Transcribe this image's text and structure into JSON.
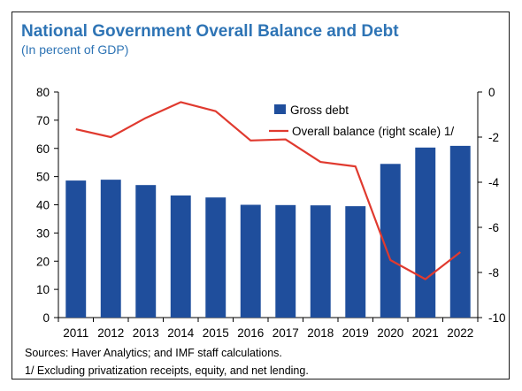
{
  "chart_data": {
    "type": "bar",
    "title": "National Government Overall Balance and Debt",
    "subtitle": "(In percent of GDP)",
    "categories": [
      "2011",
      "2012",
      "2013",
      "2014",
      "2015",
      "2016",
      "2017",
      "2018",
      "2019",
      "2020",
      "2021",
      "2022"
    ],
    "series": [
      {
        "name": "Gross debt",
        "type": "bar",
        "axis": "left",
        "color": "#1f4e9c",
        "values": [
          48.6,
          48.9,
          47.0,
          43.3,
          42.6,
          40.0,
          39.9,
          39.8,
          39.5,
          54.5,
          60.3,
          60.9
        ]
      },
      {
        "name": "Overall balance (right scale) 1/",
        "type": "line",
        "axis": "right",
        "color": "#e03a2f",
        "values": [
          -1.65,
          -2.0,
          -1.15,
          -0.45,
          -0.85,
          -2.15,
          -2.1,
          -3.1,
          -3.3,
          -7.45,
          -8.3,
          -7.1
        ]
      }
    ],
    "y_left": {
      "min": 0,
      "max": 80,
      "ticks": [
        0,
        10,
        20,
        30,
        40,
        50,
        60,
        70,
        80
      ]
    },
    "y_right": {
      "min": -10,
      "max": 0,
      "ticks": [
        0,
        -2,
        -4,
        -6,
        -8,
        -10
      ]
    },
    "grid": false,
    "legend_position": "top-right"
  },
  "notes": {
    "sources": "Sources: Haver Analytics; and IMF staff calculations.",
    "footnote": "1/ Excluding privatization receipts, equity, and net lending."
  }
}
